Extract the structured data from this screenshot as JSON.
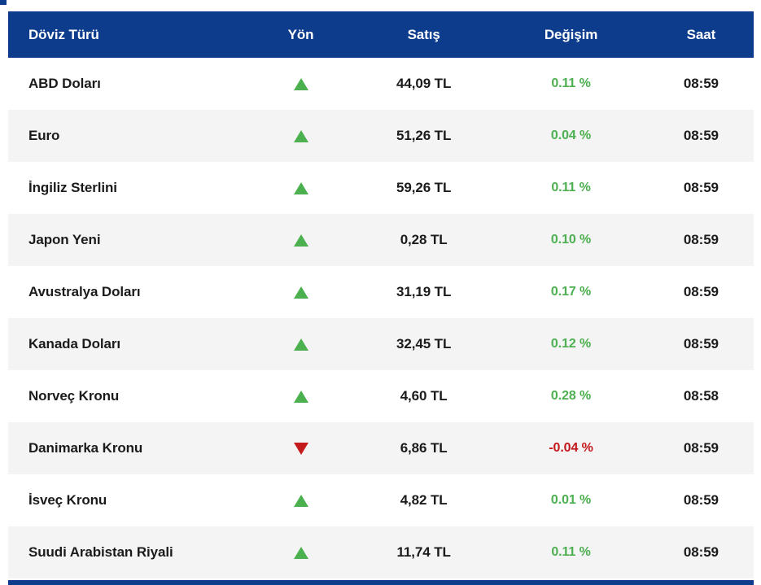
{
  "colors": {
    "header_bg": "#0d3c8d",
    "header_text": "#ffffff",
    "row_bg": "#ffffff",
    "row_alt_bg": "#f4f4f4",
    "row_text": "#1b1b1b",
    "positive": "#4caf50",
    "negative": "#c2181b"
  },
  "table": {
    "columns": [
      {
        "key": "currency",
        "label": "Döviz Türü"
      },
      {
        "key": "direction",
        "label": "Yön"
      },
      {
        "key": "price",
        "label": "Satış"
      },
      {
        "key": "change",
        "label": "Değişim"
      },
      {
        "key": "time",
        "label": "Saat"
      }
    ],
    "rows": [
      {
        "currency": "ABD Doları",
        "direction": "up",
        "price": "44,09 TL",
        "change": "0.11 %",
        "time": "08:59"
      },
      {
        "currency": "Euro",
        "direction": "up",
        "price": "51,26 TL",
        "change": "0.04 %",
        "time": "08:59"
      },
      {
        "currency": "İngiliz Sterlini",
        "direction": "up",
        "price": "59,26 TL",
        "change": "0.11 %",
        "time": "08:59"
      },
      {
        "currency": "Japon Yeni",
        "direction": "up",
        "price": "0,28 TL",
        "change": "0.10 %",
        "time": "08:59"
      },
      {
        "currency": "Avustralya Doları",
        "direction": "up",
        "price": "31,19 TL",
        "change": "0.17 %",
        "time": "08:59"
      },
      {
        "currency": "Kanada Doları",
        "direction": "up",
        "price": "32,45 TL",
        "change": "0.12 %",
        "time": "08:59"
      },
      {
        "currency": "Norveç Kronu",
        "direction": "up",
        "price": "4,60 TL",
        "change": "0.28 %",
        "time": "08:58"
      },
      {
        "currency": "Danimarka Kronu",
        "direction": "down",
        "price": "6,86 TL",
        "change": "-0.04 %",
        "time": "08:59"
      },
      {
        "currency": "İsveç Kronu",
        "direction": "up",
        "price": "4,82 TL",
        "change": "0.01 %",
        "time": "08:59"
      },
      {
        "currency": "Suudi Arabistan Riyali",
        "direction": "up",
        "price": "11,74 TL",
        "change": "0.11 %",
        "time": "08:59"
      }
    ]
  }
}
